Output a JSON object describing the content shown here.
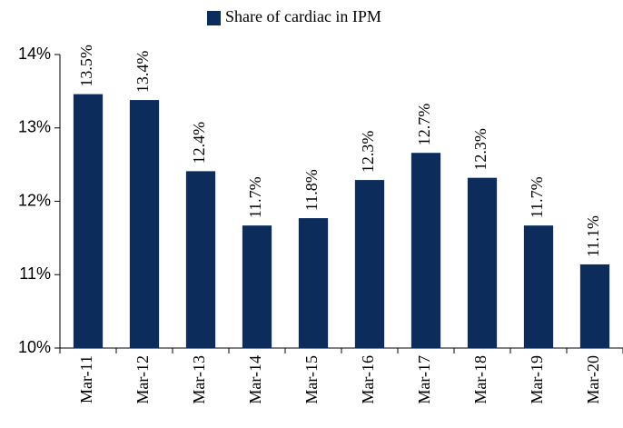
{
  "chart_data": {
    "type": "bar",
    "categories": [
      "Mar-11",
      "Mar-12",
      "Mar-13",
      "Mar-14",
      "Mar-15",
      "Mar-16",
      "Mar-17",
      "Mar-18",
      "Mar-19",
      "Mar-20"
    ],
    "series": [
      {
        "name": "Share of cardiac in IPM",
        "color": "#0c2c5c",
        "values": [
          13.46,
          13.38,
          12.41,
          11.67,
          11.77,
          12.29,
          12.66,
          12.32,
          11.67,
          11.14
        ],
        "value_labels": [
          "13.5%",
          "13.4%",
          "12.4%",
          "11.7%",
          "11.8%",
          "12.3%",
          "12.7%",
          "12.3%",
          "11.7%",
          "11.1%"
        ]
      }
    ],
    "ylim": [
      10,
      14
    ],
    "yticks": [
      {
        "value": 10,
        "label": "10%"
      },
      {
        "value": 11,
        "label": "11%"
      },
      {
        "value": 12,
        "label": "12%"
      },
      {
        "value": 13,
        "label": "13%"
      },
      {
        "value": 14,
        "label": "14%"
      }
    ],
    "grid": false,
    "legend": "top"
  }
}
